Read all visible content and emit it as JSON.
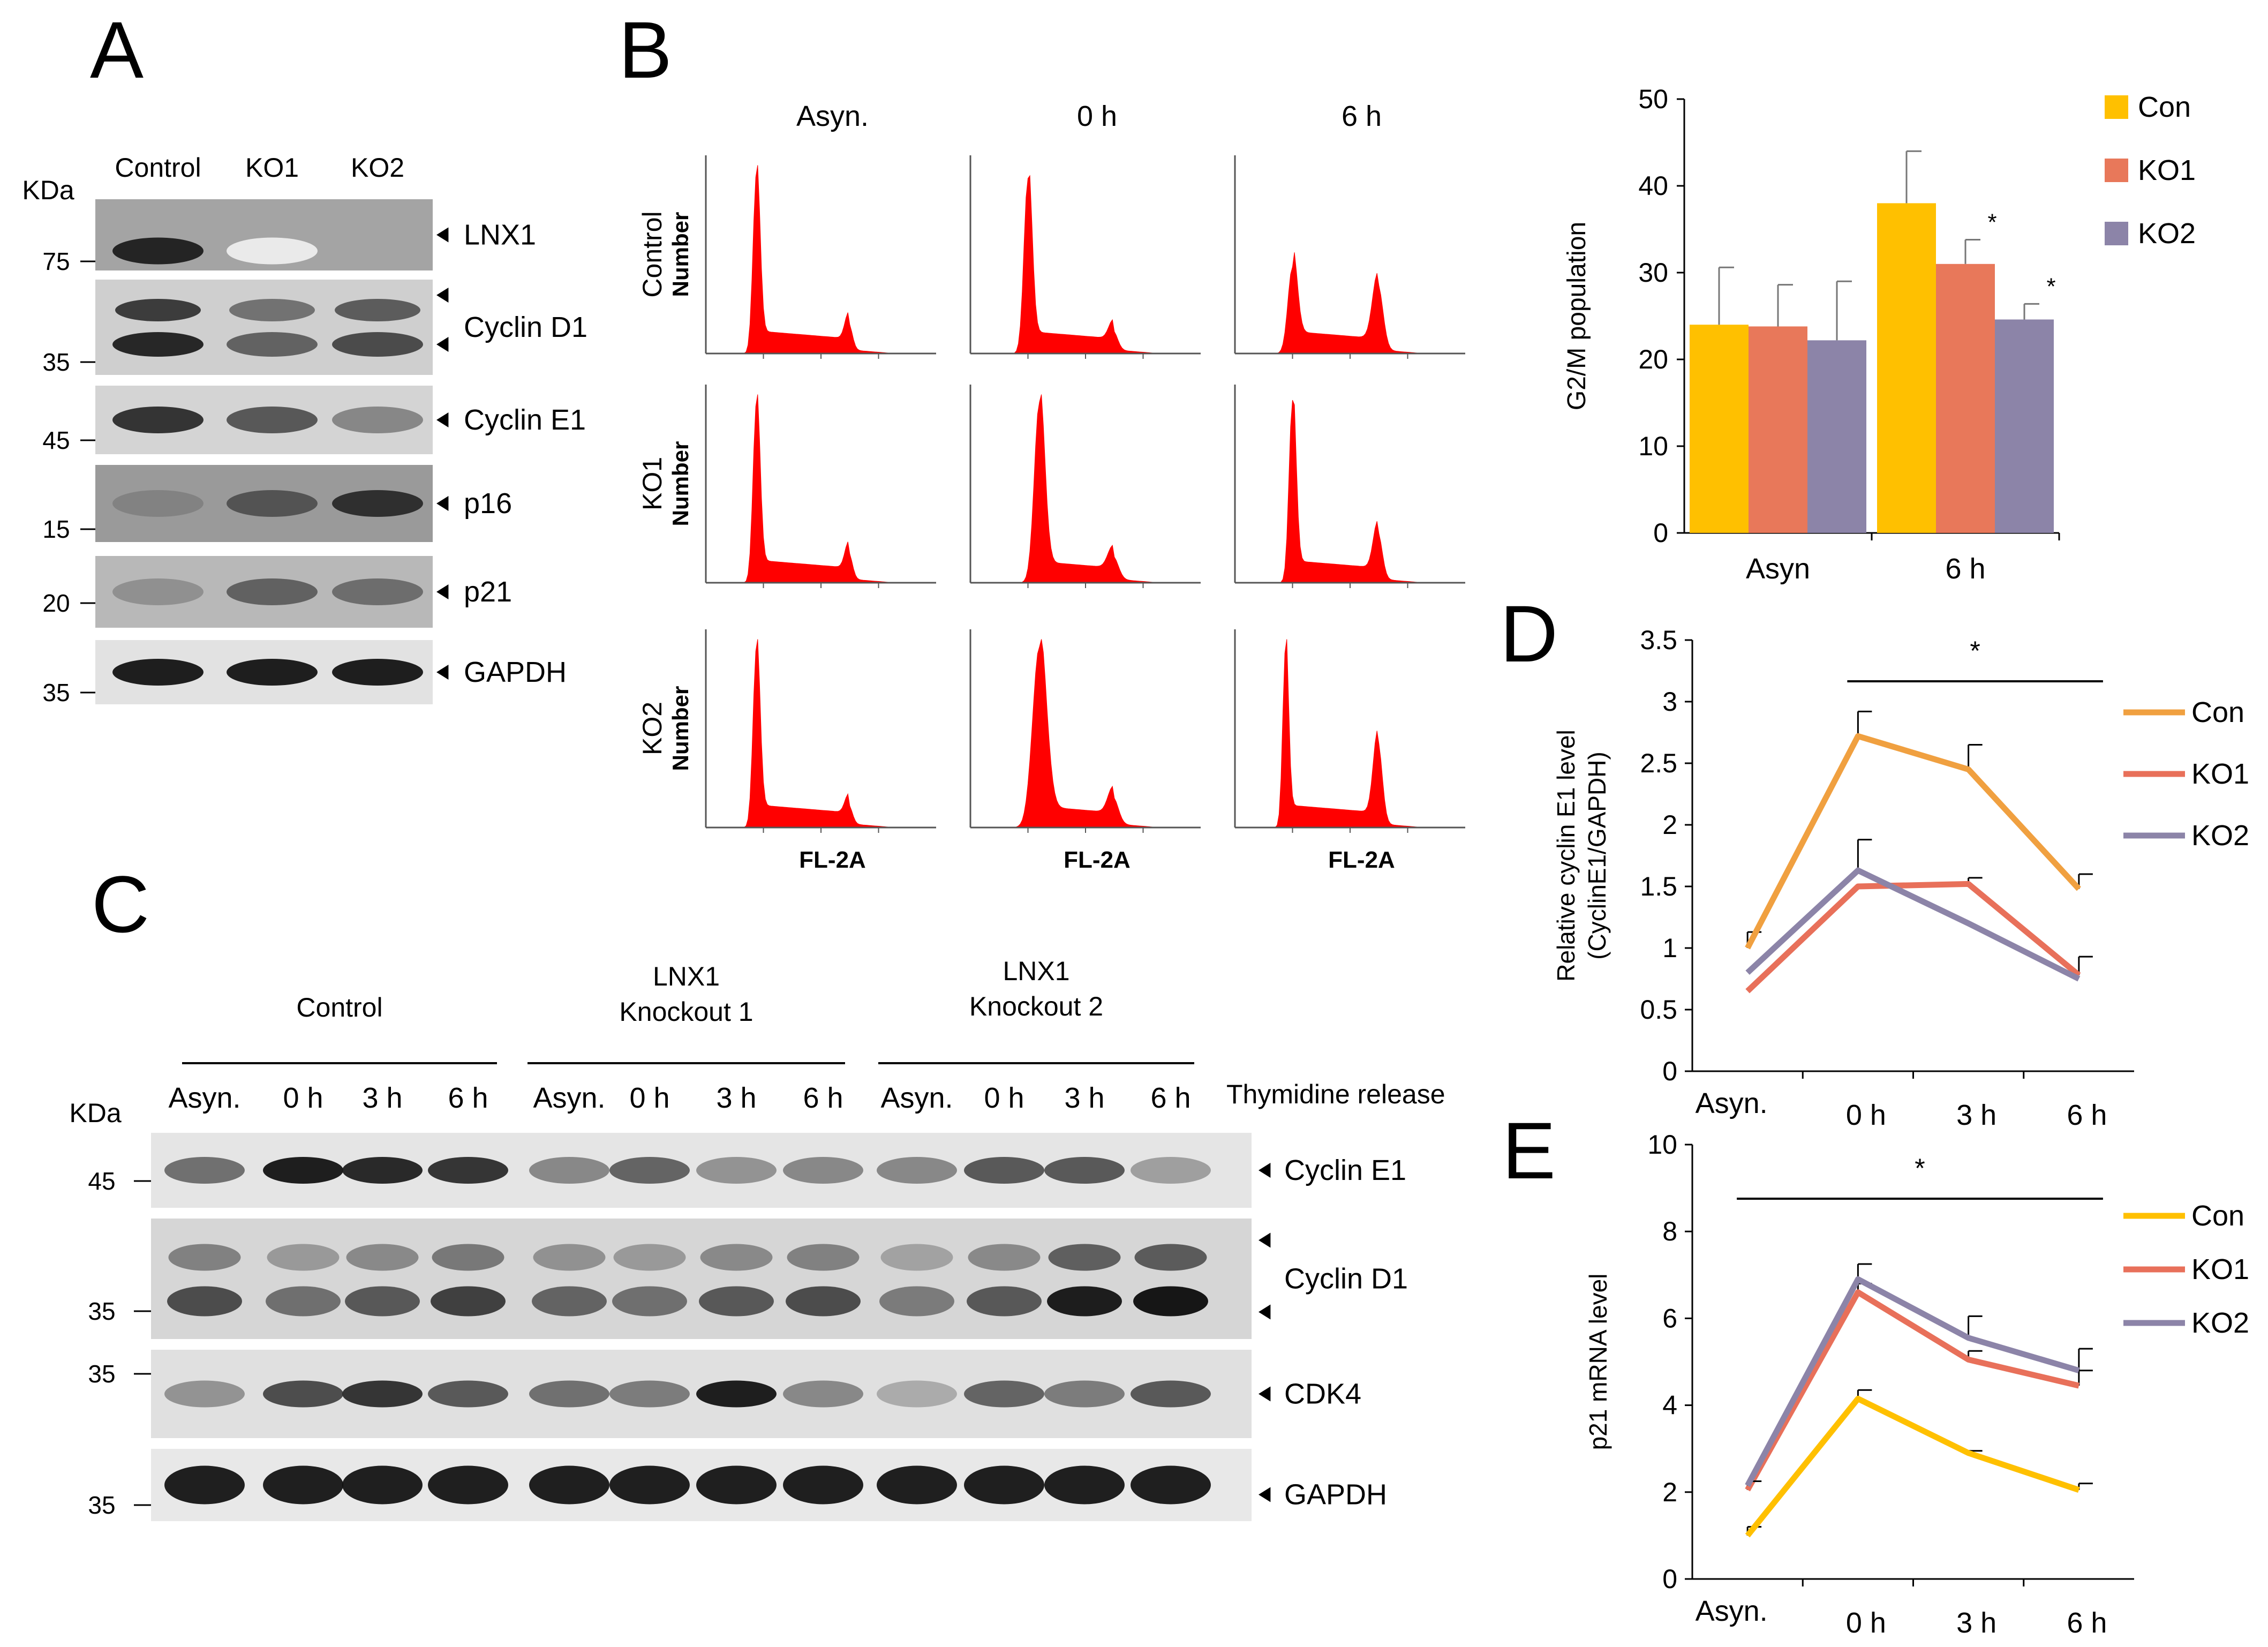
{
  "panel_a": {
    "letter": "A",
    "kda_label": "KDa",
    "lanes": [
      "Control",
      "KO1",
      "KO2"
    ],
    "blots": [
      {
        "label": "LNX1",
        "mw": "75",
        "bg": "#a4a4a4",
        "bands": [
          0.9,
          0.06,
          0.0
        ],
        "double": false
      },
      {
        "label": "Cyclin D1",
        "mw": "35",
        "bg": "#cfcfcf",
        "bands": [
          0.9,
          0.65,
          0.75
        ],
        "double": true
      },
      {
        "label": "Cyclin E1",
        "mw": "45",
        "bg": "#d4d4d4",
        "bands": [
          0.85,
          0.7,
          0.5
        ],
        "double": false
      },
      {
        "label": "p16",
        "mw": "15",
        "bg": "#9a9a9a",
        "bands": [
          0.5,
          0.7,
          0.85
        ],
        "double": false
      },
      {
        "label": "p21",
        "mw": "20",
        "bg": "#b8b8b8",
        "bands": [
          0.45,
          0.65,
          0.6
        ],
        "double": false
      },
      {
        "label": "GAPDH",
        "mw": "35",
        "bg": "#e2e2e2",
        "bands": [
          0.95,
          0.95,
          0.95
        ],
        "double": false
      }
    ]
  },
  "panel_b": {
    "letter": "B",
    "columns": [
      "Asyn.",
      "0 h",
      "6 h"
    ],
    "rows": [
      "Control",
      "KO1",
      "KO2"
    ],
    "ylabel": "Number",
    "xlabel": "FL-2A",
    "peak_color": "#ff0000",
    "histograms": [
      [
        [
          0.22,
          0.06,
          0.62,
          0.05,
          0.96,
          0.14
        ],
        [
          0.25,
          0.07,
          0.62,
          0.06,
          0.93,
          0.1
        ],
        [
          0.25,
          0.08,
          0.62,
          0.07,
          0.46,
          0.35
        ]
      ],
      [
        [
          0.22,
          0.06,
          0.62,
          0.05,
          0.96,
          0.14
        ],
        [
          0.3,
          0.09,
          0.62,
          0.07,
          0.96,
          0.12
        ],
        [
          0.25,
          0.06,
          0.62,
          0.06,
          0.97,
          0.25
        ]
      ],
      [
        [
          0.22,
          0.06,
          0.62,
          0.05,
          0.96,
          0.1
        ],
        [
          0.3,
          0.12,
          0.62,
          0.07,
          0.96,
          0.14
        ],
        [
          0.22,
          0.05,
          0.62,
          0.06,
          0.96,
          0.44
        ]
      ]
    ]
  },
  "panel_c": {
    "letter": "C",
    "kda_label": "KDa",
    "groups": [
      {
        "title": "Control"
      },
      {
        "title": "LNX1\nKnockout 1"
      },
      {
        "title": "LNX1\nKnockout 2"
      }
    ],
    "lanes": [
      "Asyn.",
      "0 h",
      "3 h",
      "6 h",
      "Asyn.",
      "0 h",
      "3 h",
      "6 h",
      "Asyn.",
      "0 h",
      "3 h",
      "6 h"
    ],
    "release_label": "Thymidine release",
    "blots": [
      {
        "label": "Cyclin E1",
        "mw": [
          "45"
        ],
        "bg": "#e5e5e5",
        "double": false,
        "bands": [
          0.6,
          0.95,
          0.9,
          0.85,
          0.5,
          0.65,
          0.45,
          0.5,
          0.5,
          0.7,
          0.7,
          0.4
        ]
      },
      {
        "label": "Cyclin D1",
        "mw": [
          "35"
        ],
        "bg": "#d6d6d6",
        "double": true,
        "bands": [
          0.75,
          0.6,
          0.7,
          0.8,
          0.65,
          0.6,
          0.7,
          0.75,
          0.55,
          0.7,
          0.95,
          0.98
        ]
      },
      {
        "label": "CDK4",
        "mw": [
          "35"
        ],
        "bg": "#e0e0e0",
        "double": false,
        "bands": [
          0.45,
          0.75,
          0.85,
          0.7,
          0.6,
          0.55,
          0.95,
          0.5,
          0.35,
          0.65,
          0.55,
          0.7
        ]
      },
      {
        "label": "GAPDH",
        "mw": [
          "35"
        ],
        "bg": "#e8e8e8",
        "double": false,
        "bands": [
          0.95,
          0.95,
          0.95,
          0.95,
          0.95,
          0.95,
          0.95,
          0.95,
          0.95,
          0.95,
          0.95,
          0.95
        ]
      }
    ]
  },
  "chart_data": [
    {
      "id": "bar",
      "type": "bar",
      "categories": [
        "Asyn",
        "6 h"
      ],
      "series": [
        {
          "name": "Con",
          "color": "#ffc000",
          "values": [
            24,
            38
          ],
          "errors": [
            6.6,
            6.0
          ]
        },
        {
          "name": "KO1",
          "color": "#e8785a",
          "values": [
            23.8,
            31
          ],
          "errors": [
            4.8,
            2.8
          ]
        },
        {
          "name": "KO2",
          "color": "#8c84a8",
          "values": [
            22.2,
            24.6
          ],
          "errors": [
            6.8,
            1.8
          ]
        }
      ],
      "significance": [
        {
          "category": 1,
          "series": 1,
          "mark": "*"
        },
        {
          "category": 1,
          "series": 2,
          "mark": "*"
        }
      ],
      "xlabel": "",
      "ylabel": "G2/M population",
      "ylim": [
        0,
        50
      ],
      "yticks": [
        "0",
        "10",
        "20",
        "30",
        "40",
        "50"
      ],
      "grid": false,
      "legend": "top-right"
    },
    {
      "id": "d",
      "letter": "D",
      "type": "line",
      "categories": [
        "Asyn.",
        "0 h",
        "3 h",
        "6 h"
      ],
      "series": [
        {
          "name": "Con",
          "color": "#f0a040",
          "values": [
            1.0,
            2.72,
            2.45,
            1.48
          ],
          "errors": [
            0.13,
            0.2,
            0.2,
            0.12
          ]
        },
        {
          "name": "KO1",
          "color": "#e8705a",
          "values": [
            0.65,
            1.5,
            1.52,
            0.78
          ],
          "errors": [
            0,
            0,
            0.05,
            0.15
          ]
        },
        {
          "name": "KO2",
          "color": "#8c84a8",
          "values": [
            0.8,
            1.63,
            1.2,
            0.75
          ],
          "errors": [
            0,
            0.25,
            0,
            0
          ]
        }
      ],
      "significance": {
        "mark": "*",
        "from": 1,
        "to": 3
      },
      "xlabel": "",
      "ylabel": "Relative cyclin E1 level\n(CyclinE1/GAPDH)",
      "ylim": [
        0,
        3.5
      ],
      "yticks": [
        "0",
        "0.5",
        "1",
        "1.5",
        "2",
        "2.5",
        "3",
        "3.5"
      ],
      "grid": false,
      "legend": "top-right"
    },
    {
      "id": "e",
      "letter": "E",
      "type": "line",
      "categories": [
        "Asyn.",
        "0 h",
        "3 h",
        "6 h"
      ],
      "series": [
        {
          "name": "Con",
          "color": "#ffc000",
          "values": [
            1.0,
            4.15,
            2.9,
            2.05
          ],
          "errors": [
            0.2,
            0.2,
            0.05,
            0.15
          ]
        },
        {
          "name": "KO1",
          "color": "#e8705a",
          "values": [
            2.05,
            6.6,
            5.05,
            4.45
          ],
          "errors": [
            0.2,
            0.2,
            0.2,
            0.35
          ]
        },
        {
          "name": "KO2",
          "color": "#8c84a8",
          "values": [
            2.15,
            6.9,
            5.55,
            4.8
          ],
          "errors": [
            0.1,
            0.35,
            0.5,
            0.5
          ]
        }
      ],
      "significance": {
        "mark": "*",
        "from": 0,
        "to": 3
      },
      "xlabel": "",
      "ylabel": "p21 mRNA level",
      "ylim": [
        0,
        10
      ],
      "yticks": [
        "0",
        "2",
        "4",
        "6",
        "8",
        "10"
      ],
      "grid": false,
      "legend": "top-right"
    }
  ]
}
